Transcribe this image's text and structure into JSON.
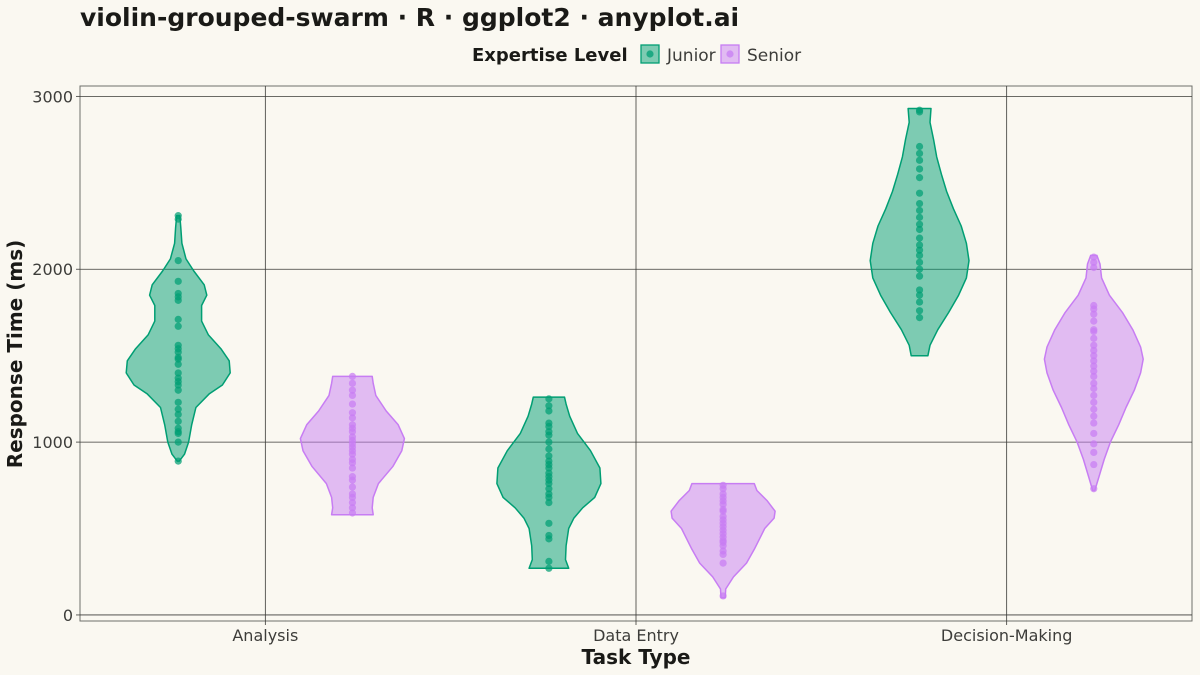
{
  "chart_data": {
    "type": "violin",
    "title": "violin-grouped-swarm · R · ggplot2 · anyplot.ai",
    "xlabel": "Task Type",
    "ylabel": "Response Time (ms)",
    "categories": [
      "Analysis",
      "Data Entry",
      "Decision-Making"
    ],
    "yticks": [
      "0",
      "1000",
      "2000",
      "3000"
    ],
    "ylim": [
      -35,
      3060
    ],
    "legend": {
      "title": "Expertise Level",
      "position": "top",
      "entries": [
        "Junior",
        "Senior"
      ]
    },
    "grid": true,
    "series": [
      {
        "name": "Junior",
        "color": "#009E73",
        "groups": [
          {
            "category": "Analysis",
            "min": 890,
            "max": 2310,
            "profile": [
              [
                890,
                0.02
              ],
              [
                930,
                0.12
              ],
              [
                1000,
                0.2
              ],
              [
                1100,
                0.26
              ],
              [
                1200,
                0.34
              ],
              [
                1280,
                0.6
              ],
              [
                1330,
                0.85
              ],
              [
                1400,
                1.0
              ],
              [
                1470,
                0.98
              ],
              [
                1540,
                0.82
              ],
              [
                1620,
                0.58
              ],
              [
                1700,
                0.45
              ],
              [
                1790,
                0.45
              ],
              [
                1850,
                0.55
              ],
              [
                1910,
                0.5
              ],
              [
                1990,
                0.3
              ],
              [
                2060,
                0.15
              ],
              [
                2150,
                0.07
              ],
              [
                2240,
                0.05
              ],
              [
                2310,
                0.03
              ]
            ],
            "points": [
              890,
              1000,
              1050,
              1060,
              1080,
              1120,
              1160,
              1190,
              1230,
              1300,
              1330,
              1350,
              1370,
              1400,
              1450,
              1480,
              1490,
              1520,
              1540,
              1560,
              1670,
              1710,
              1820,
              1840,
              1860,
              1930,
              2050,
              2290,
              2310
            ]
          },
          {
            "category": "Data Entry",
            "min": 270,
            "max": 1260,
            "profile": [
              [
                270,
                0.38
              ],
              [
                320,
                0.32
              ],
              [
                400,
                0.33
              ],
              [
                500,
                0.38
              ],
              [
                560,
                0.48
              ],
              [
                620,
                0.65
              ],
              [
                680,
                0.88
              ],
              [
                760,
                1.0
              ],
              [
                850,
                0.98
              ],
              [
                950,
                0.8
              ],
              [
                1050,
                0.55
              ],
              [
                1150,
                0.4
              ],
              [
                1220,
                0.33
              ],
              [
                1260,
                0.3
              ]
            ],
            "points": [
              270,
              310,
              440,
              460,
              530,
              650,
              680,
              700,
              730,
              760,
              780,
              800,
              820,
              850,
              870,
              890,
              920,
              960,
              1000,
              1040,
              1060,
              1090,
              1110,
              1180,
              1210,
              1250
            ]
          },
          {
            "category": "Decision-Making",
            "min": 1500,
            "max": 2930,
            "profile": [
              [
                1500,
                0.16
              ],
              [
                1560,
                0.2
              ],
              [
                1650,
                0.35
              ],
              [
                1750,
                0.56
              ],
              [
                1850,
                0.75
              ],
              [
                1950,
                0.9
              ],
              [
                2050,
                0.95
              ],
              [
                2150,
                0.9
              ],
              [
                2250,
                0.8
              ],
              [
                2350,
                0.65
              ],
              [
                2450,
                0.52
              ],
              [
                2550,
                0.42
              ],
              [
                2650,
                0.33
              ],
              [
                2750,
                0.27
              ],
              [
                2850,
                0.2
              ],
              [
                2930,
                0.22
              ]
            ],
            "points": [
              1720,
              1760,
              1810,
              1850,
              1880,
              1960,
              2000,
              2040,
              2080,
              2110,
              2140,
              2180,
              2230,
              2260,
              2300,
              2340,
              2380,
              2440,
              2530,
              2580,
              2630,
              2670,
              2710,
              2910,
              2920
            ]
          }
        ]
      },
      {
        "name": "Senior",
        "color": "#C77DF3",
        "groups": [
          {
            "category": "Analysis",
            "min": 580,
            "max": 1380,
            "profile": [
              [
                580,
                0.4
              ],
              [
                620,
                0.38
              ],
              [
                680,
                0.4
              ],
              [
                760,
                0.5
              ],
              [
                860,
                0.78
              ],
              [
                950,
                0.95
              ],
              [
                1020,
                1.0
              ],
              [
                1100,
                0.88
              ],
              [
                1180,
                0.65
              ],
              [
                1270,
                0.45
              ],
              [
                1340,
                0.4
              ],
              [
                1380,
                0.38
              ]
            ],
            "points": [
              590,
              620,
              650,
              680,
              700,
              740,
              780,
              800,
              850,
              880,
              900,
              930,
              950,
              970,
              990,
              1010,
              1030,
              1060,
              1080,
              1100,
              1140,
              1170,
              1220,
              1270,
              1300,
              1340,
              1380
            ]
          },
          {
            "category": "Data Entry",
            "min": 100,
            "max": 760,
            "profile": [
              [
                100,
                0.04
              ],
              [
                150,
                0.05
              ],
              [
                220,
                0.2
              ],
              [
                300,
                0.45
              ],
              [
                380,
                0.6
              ],
              [
                440,
                0.7
              ],
              [
                500,
                0.8
              ],
              [
                560,
                0.98
              ],
              [
                600,
                1.0
              ],
              [
                660,
                0.85
              ],
              [
                720,
                0.65
              ],
              [
                760,
                0.6
              ]
            ],
            "points": [
              110,
              300,
              350,
              370,
              400,
              420,
              430,
              450,
              470,
              490,
              510,
              530,
              550,
              570,
              600,
              610,
              640,
              660,
              680,
              700,
              730,
              750
            ]
          },
          {
            "category": "Decision-Making",
            "min": 720,
            "max": 2080,
            "profile": [
              [
                720,
                0.02
              ],
              [
                800,
                0.1
              ],
              [
                900,
                0.2
              ],
              [
                1000,
                0.32
              ],
              [
                1100,
                0.48
              ],
              [
                1200,
                0.62
              ],
              [
                1300,
                0.78
              ],
              [
                1400,
                0.9
              ],
              [
                1480,
                0.95
              ],
              [
                1550,
                0.9
              ],
              [
                1650,
                0.75
              ],
              [
                1750,
                0.55
              ],
              [
                1850,
                0.3
              ],
              [
                1950,
                0.15
              ],
              [
                2030,
                0.12
              ],
              [
                2080,
                0.06
              ]
            ],
            "points": [
              730,
              870,
              940,
              990,
              1050,
              1110,
              1150,
              1190,
              1230,
              1270,
              1310,
              1340,
              1380,
              1410,
              1440,
              1470,
              1500,
              1530,
              1560,
              1600,
              1640,
              1650,
              1700,
              1740,
              1770,
              1790,
              2010,
              2040,
              2070
            ]
          }
        ]
      }
    ]
  }
}
